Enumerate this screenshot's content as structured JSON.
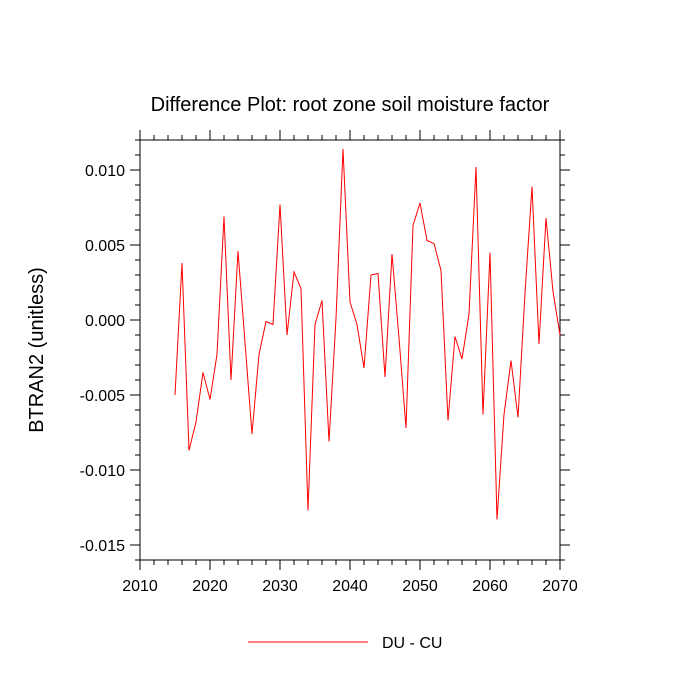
{
  "chart_data": {
    "type": "line",
    "title": "Difference Plot: root zone soil moisture factor",
    "xlabel": "",
    "ylabel": "BTRAN2  (unitless)",
    "xlim": [
      2010,
      2070
    ],
    "ylim": [
      -0.016,
      0.012
    ],
    "x_ticks": [
      2010,
      2020,
      2030,
      2040,
      2050,
      2060,
      2070
    ],
    "x_tick_labels": [
      "2010",
      "2020",
      "2030",
      "2040",
      "2050",
      "2060",
      "2070"
    ],
    "y_ticks": [
      -0.015,
      -0.01,
      -0.005,
      0.0,
      0.005,
      0.01
    ],
    "y_tick_labels": [
      "-0.015",
      "-0.010",
      "-0.005",
      "0.000",
      "0.005",
      "0.010"
    ],
    "grid": false,
    "legend_position": "bottom-center",
    "series": [
      {
        "name": "DU - CU",
        "color": "#ff0000",
        "x": [
          2015,
          2016,
          2017,
          2018,
          2019,
          2020,
          2021,
          2022,
          2023,
          2024,
          2025,
          2026,
          2027,
          2028,
          2029,
          2030,
          2031,
          2032,
          2033,
          2034,
          2035,
          2036,
          2037,
          2038,
          2039,
          2040,
          2041,
          2042,
          2043,
          2044,
          2045,
          2046,
          2047,
          2048,
          2049,
          2050,
          2051,
          2052,
          2053,
          2054,
          2055,
          2056,
          2057,
          2058,
          2059,
          2060,
          2061,
          2062,
          2063,
          2064,
          2065,
          2066,
          2067,
          2068,
          2069,
          2070
        ],
        "values": [
          -0.005,
          0.0038,
          -0.0087,
          -0.0068,
          -0.0035,
          -0.0053,
          -0.0023,
          0.0069,
          -0.004,
          0.0046,
          -0.0015,
          -0.0076,
          -0.0023,
          -0.0001,
          -0.0003,
          0.0077,
          -0.001,
          0.0032,
          0.0021,
          -0.0127,
          -0.0003,
          0.0013,
          -0.0081,
          0.0001,
          0.0114,
          0.0012,
          -0.0003,
          -0.0032,
          0.003,
          0.0031,
          -0.0038,
          0.0044,
          -0.0012,
          -0.0072,
          0.0063,
          0.0078,
          0.0053,
          0.0051,
          0.0033,
          -0.0067,
          -0.0011,
          -0.0026,
          0.0004,
          0.0102,
          -0.0063,
          0.0045,
          -0.0133,
          -0.0063,
          -0.0027,
          -0.0065,
          0.0018,
          0.0089,
          -0.0016,
          0.0068,
          0.0019,
          -0.001
        ]
      }
    ]
  }
}
